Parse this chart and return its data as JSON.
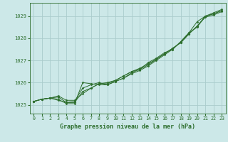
{
  "bg_color": "#cce8e8",
  "grid_color": "#aacccc",
  "line_color": "#2d6e2d",
  "marker_color": "#2d6e2d",
  "xlabel": "Graphe pression niveau de la mer (hPa)",
  "xlabel_fontsize": 6.0,
  "ylim": [
    1024.6,
    1029.6
  ],
  "xlim": [
    -0.5,
    23.5
  ],
  "yticks": [
    1025,
    1026,
    1027,
    1028,
    1029
  ],
  "xticks": [
    0,
    1,
    2,
    3,
    4,
    5,
    6,
    7,
    8,
    9,
    10,
    11,
    12,
    13,
    14,
    15,
    16,
    17,
    18,
    19,
    20,
    21,
    22,
    23
  ],
  "series": [
    [
      1025.15,
      1025.25,
      1025.3,
      1025.4,
      1025.2,
      1025.2,
      1025.5,
      1025.75,
      1025.95,
      1026.0,
      1026.1,
      1026.3,
      1026.5,
      1026.6,
      1026.9,
      1027.1,
      1027.35,
      1027.5,
      1027.85,
      1028.25,
      1028.5,
      1029.0,
      1029.1,
      1029.25
    ],
    [
      1025.15,
      1025.25,
      1025.3,
      1025.35,
      1025.1,
      1025.1,
      1025.6,
      1025.75,
      1025.95,
      1025.95,
      1026.1,
      1026.3,
      1026.5,
      1026.65,
      1026.85,
      1027.05,
      1027.3,
      1027.55,
      1027.8,
      1028.2,
      1028.55,
      1028.95,
      1029.05,
      1029.2
    ],
    [
      1025.15,
      1025.25,
      1025.3,
      1025.2,
      1025.1,
      1025.15,
      1025.75,
      1025.9,
      1026.0,
      1025.9,
      1026.05,
      1026.2,
      1026.4,
      1026.55,
      1026.75,
      1027.0,
      1027.25,
      1027.5,
      1027.85,
      1028.25,
      1028.75,
      1029.0,
      1029.15,
      1029.3
    ],
    [
      1025.15,
      1025.25,
      1025.3,
      1025.25,
      1025.05,
      1025.05,
      1026.0,
      1025.95,
      1025.9,
      1025.9,
      1026.05,
      1026.2,
      1026.45,
      1026.6,
      1026.8,
      1027.05,
      1027.3,
      1027.55,
      1027.8,
      1028.2,
      1028.55,
      1029.0,
      1029.1,
      1029.25
    ]
  ]
}
